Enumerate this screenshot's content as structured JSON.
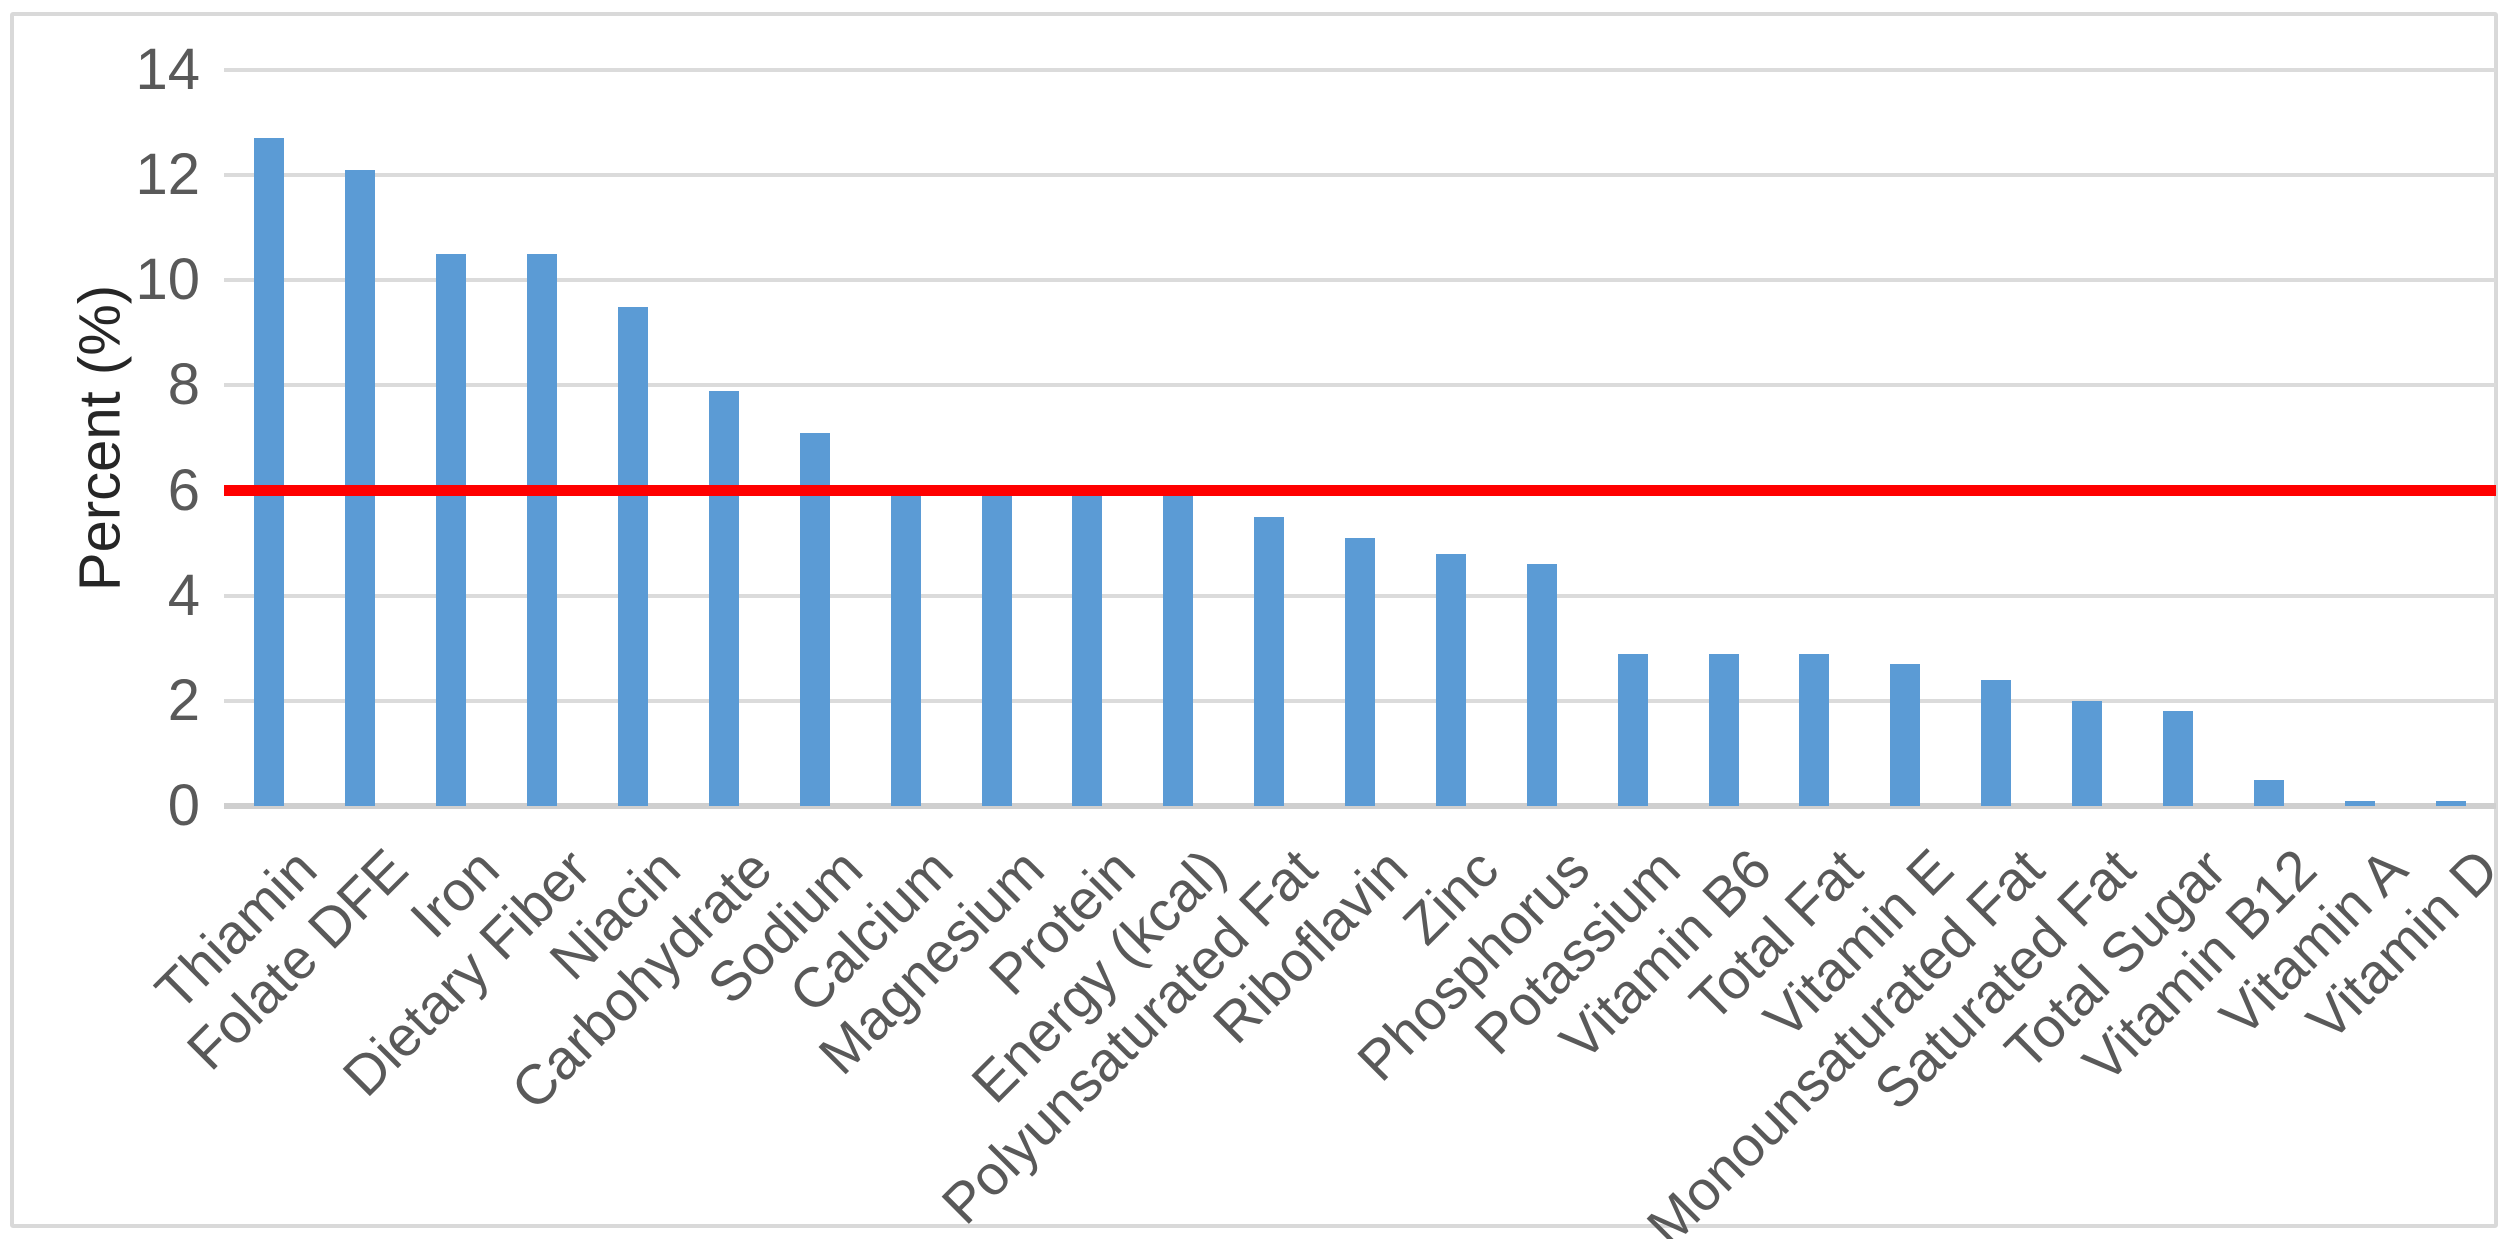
{
  "chart_data": {
    "type": "bar",
    "title": "",
    "xlabel": "",
    "ylabel": "Percent (%)",
    "ylim": [
      0,
      14
    ],
    "yticks": [
      0,
      2,
      4,
      6,
      8,
      10,
      12,
      14
    ],
    "grid": true,
    "legend": false,
    "bar_color": "#5B9BD5",
    "gridline_color": "#DBDBDB",
    "axis_line_color": "#CFCFCF",
    "tick_label_color": "#595959",
    "axis_title_color": "#262626",
    "reference_line": {
      "value": 6,
      "color": "#FF0000"
    },
    "categories": [
      "Thiamin",
      "Folate DFE",
      "Iron",
      "Dietary Fiber",
      "Niacin",
      "Carbohydrate",
      "Sodium",
      "Calcium",
      "Magnesium",
      "Protein",
      "Energy (kcal)",
      "Polyunsaturated Fat",
      "Riboflavin",
      "Zinc",
      "Phosphorus",
      "Potassium",
      "Vitamin B6",
      "Total Fat",
      "Vitamin E",
      "Monounsaturated Fat",
      "Saturated Fat",
      "Total Sugar",
      "Vitamin B12",
      "Vitamin A",
      "Vitamin D"
    ],
    "values": [
      12.7,
      12.1,
      10.5,
      10.5,
      9.5,
      7.9,
      7.1,
      6.1,
      6.1,
      6.1,
      5.9,
      5.5,
      5.1,
      4.8,
      4.6,
      2.9,
      2.9,
      2.9,
      2.7,
      2.4,
      2.0,
      1.8,
      0.5,
      0.1,
      0.1
    ]
  }
}
